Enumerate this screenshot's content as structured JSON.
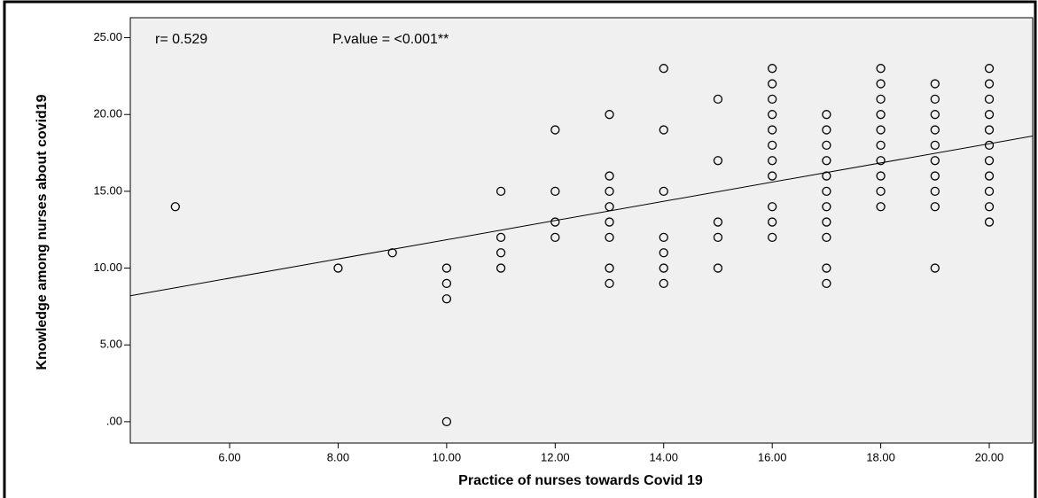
{
  "chart_data": {
    "type": "scatter",
    "x_label": "Practice of nurses towards Covid 19",
    "y_label": "Knowledge among nurses about covid19",
    "annotations": [
      "r= 0.529",
      "P.value = <0.001**"
    ],
    "color": "#000000",
    "xlim": [
      4.17,
      20.8
    ],
    "ylim": [
      -1.39,
      26.3
    ],
    "xticks": [
      {
        "value": 6,
        "label": "6.00"
      },
      {
        "value": 8,
        "label": "8.00"
      },
      {
        "value": 10,
        "label": "10.00"
      },
      {
        "value": 12,
        "label": "12.00"
      },
      {
        "value": 14,
        "label": "14.00"
      },
      {
        "value": 16,
        "label": "16.00"
      },
      {
        "value": 18,
        "label": "18.00"
      },
      {
        "value": 20,
        "label": "20.00"
      }
    ],
    "yticks": [
      {
        "value": 0,
        "label": ".00"
      },
      {
        "value": 5,
        "label": "5.00"
      },
      {
        "value": 10,
        "label": "10.00"
      },
      {
        "value": 15,
        "label": "15.00"
      },
      {
        "value": 20,
        "label": "20.00"
      },
      {
        "value": 25,
        "label": "25.00"
      }
    ],
    "fit_line": {
      "x": [
        4.17,
        20.8
      ],
      "y": [
        8.2,
        18.6
      ]
    },
    "x": [
      5,
      8,
      9,
      10,
      10,
      10,
      10,
      11,
      11,
      11,
      11,
      12,
      12,
      12,
      12,
      13,
      13,
      13,
      13,
      13,
      13,
      13,
      13,
      14,
      14,
      14,
      14,
      14,
      14,
      14,
      15,
      15,
      15,
      15,
      15,
      16,
      16,
      16,
      16,
      16,
      16,
      16,
      16,
      16,
      16,
      16,
      17,
      17,
      17,
      17,
      17,
      17,
      17,
      17,
      17,
      17,
      17,
      18,
      18,
      18,
      18,
      18,
      18,
      18,
      18,
      18,
      18,
      19,
      19,
      19,
      19,
      19,
      19,
      19,
      19,
      19,
      19,
      20,
      20,
      20,
      20,
      20,
      20,
      20,
      20,
      20,
      20,
      20
    ],
    "values": [
      14,
      10,
      11,
      10,
      9,
      8,
      0,
      15,
      12,
      11,
      10,
      19,
      15,
      13,
      12,
      20,
      16,
      15,
      14,
      13,
      12,
      10,
      9,
      23,
      19,
      15,
      12,
      11,
      10,
      9,
      21,
      17,
      13,
      12,
      10,
      23,
      22,
      21,
      20,
      19,
      18,
      17,
      16,
      14,
      13,
      12,
      20,
      19,
      18,
      17,
      16,
      15,
      14,
      13,
      12,
      10,
      9,
      23,
      22,
      21,
      20,
      19,
      18,
      17,
      16,
      15,
      14,
      22,
      21,
      20,
      19,
      18,
      17,
      16,
      15,
      14,
      10,
      23,
      22,
      21,
      20,
      19,
      18,
      17,
      16,
      15,
      14,
      13
    ]
  }
}
